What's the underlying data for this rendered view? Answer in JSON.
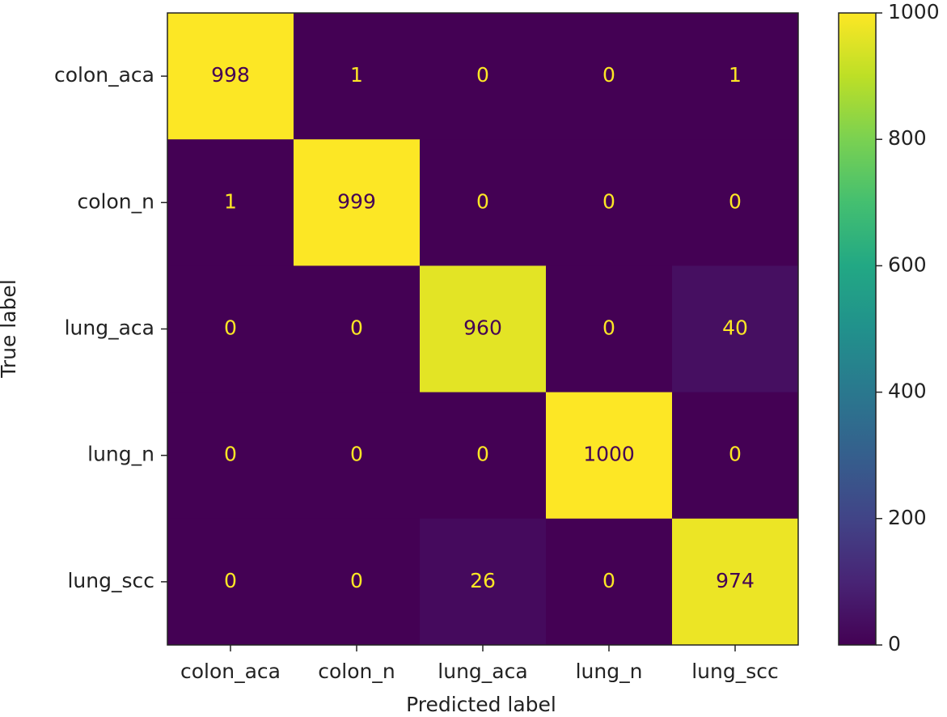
{
  "chart_data": {
    "type": "heatmap",
    "colormap": "viridis",
    "x_label": "Predicted label",
    "y_label": "True label",
    "x_categories": [
      "colon_aca",
      "colon_n",
      "lung_aca",
      "lung_n",
      "lung_scc"
    ],
    "y_categories": [
      "colon_aca",
      "colon_n",
      "lung_aca",
      "lung_n",
      "lung_scc"
    ],
    "values": [
      [
        998,
        1,
        0,
        0,
        1
      ],
      [
        1,
        999,
        0,
        0,
        0
      ],
      [
        0,
        0,
        960,
        0,
        40
      ],
      [
        0,
        0,
        0,
        1000,
        0
      ],
      [
        0,
        0,
        26,
        0,
        974
      ]
    ],
    "zlim": [
      0,
      1000
    ],
    "colorbar_ticks": [
      0,
      200,
      400,
      600,
      800,
      1000
    ]
  }
}
